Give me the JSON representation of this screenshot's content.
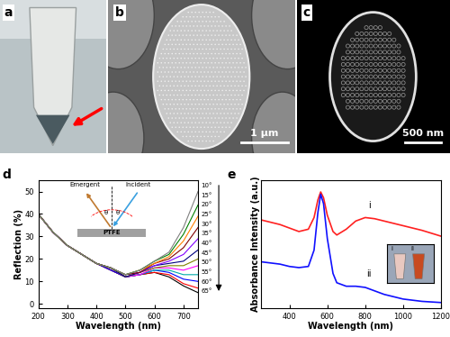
{
  "panels": [
    {
      "label": "a"
    },
    {
      "label": "b",
      "scale_bar": "1 μm"
    },
    {
      "label": "c",
      "scale_bar": "500 nm"
    }
  ],
  "chart_data": [
    {
      "type": "line",
      "label": "d",
      "x_label": "Wavelength (nm)",
      "y_label": "Reflection (%)",
      "xlim": [
        200,
        750
      ],
      "xticks": [
        200,
        300,
        400,
        500,
        600,
        700
      ],
      "ylim": [
        -2,
        55
      ],
      "yticks": [
        0,
        10,
        20,
        30,
        40,
        50
      ],
      "inset": {
        "emergent": "Emergent",
        "incident": "Incident",
        "angle": "θ",
        "substrate": "PTFE"
      },
      "x": [
        200,
        250,
        300,
        350,
        400,
        450,
        500,
        550,
        600,
        650,
        700,
        750
      ],
      "series": [
        {
          "name": "10°",
          "color": "#000000",
          "values": [
            40,
            32,
            26,
            22,
            18,
            15,
            12,
            13,
            14,
            12,
            8,
            5
          ]
        },
        {
          "name": "15°",
          "color": "#ff0000",
          "values": [
            40,
            32,
            26,
            22,
            18,
            15,
            12,
            13,
            14,
            13,
            9,
            7
          ]
        },
        {
          "name": "20°",
          "color": "#0000ff",
          "values": [
            40,
            32,
            26,
            22,
            18,
            15,
            12,
            13,
            15,
            14,
            11,
            10
          ]
        },
        {
          "name": "25°",
          "color": "#00aaaa",
          "values": [
            40,
            32,
            26,
            22,
            18,
            16,
            12,
            13,
            15,
            15,
            13,
            13
          ]
        },
        {
          "name": "30°",
          "color": "#ff00ff",
          "values": [
            40,
            32,
            26,
            22,
            18,
            16,
            12,
            13,
            16,
            16,
            15,
            17
          ]
        },
        {
          "name": "35°",
          "color": "#808000",
          "values": [
            40,
            32,
            26,
            22,
            18,
            16,
            12,
            14,
            16,
            17,
            17,
            20
          ]
        },
        {
          "name": "40°",
          "color": "#000080",
          "values": [
            40,
            32,
            26,
            22,
            18,
            16,
            12,
            14,
            17,
            18,
            19,
            24
          ]
        },
        {
          "name": "45°",
          "color": "#8000ff",
          "values": [
            40,
            32,
            26,
            22,
            18,
            16,
            13,
            14,
            17,
            19,
            22,
            29
          ]
        },
        {
          "name": "50°",
          "color": "#800000",
          "values": [
            40,
            32,
            26,
            22,
            18,
            16,
            13,
            14,
            18,
            20,
            25,
            34
          ]
        },
        {
          "name": "55°",
          "color": "#ff8000",
          "values": [
            40,
            32,
            26,
            22,
            18,
            16,
            13,
            15,
            18,
            21,
            28,
            39
          ]
        },
        {
          "name": "60°",
          "color": "#008000",
          "values": [
            40,
            32,
            26,
            22,
            18,
            16,
            13,
            15,
            19,
            22,
            31,
            44
          ]
        },
        {
          "name": "65°",
          "color": "#808080",
          "values": [
            40,
            32,
            26,
            22,
            18,
            16,
            13,
            15,
            19,
            23,
            34,
            50
          ]
        }
      ]
    },
    {
      "type": "line",
      "label": "e",
      "x_label": "Wavelength (nm)",
      "y_label": "Absorbance Intensity (a.u.)",
      "xlim": [
        250,
        1200
      ],
      "xticks": [
        400,
        600,
        800,
        1000,
        1200
      ],
      "ylim": [
        0,
        1.1
      ],
      "yticks": [],
      "tick_labels": "x",
      "inset_labels": [
        "i",
        "ii"
      ],
      "x": [
        250,
        300,
        350,
        400,
        450,
        500,
        530,
        550,
        565,
        580,
        600,
        630,
        650,
        700,
        750,
        800,
        850,
        900,
        1000,
        1100,
        1200
      ],
      "series": [
        {
          "name": "i",
          "color": "#ff2020",
          "values": [
            0.76,
            0.74,
            0.72,
            0.69,
            0.66,
            0.68,
            0.78,
            0.93,
            1.0,
            0.95,
            0.8,
            0.66,
            0.63,
            0.68,
            0.75,
            0.78,
            0.77,
            0.75,
            0.71,
            0.67,
            0.62
          ]
        },
        {
          "name": "ii",
          "color": "#1010ff",
          "values": [
            0.4,
            0.39,
            0.38,
            0.36,
            0.35,
            0.36,
            0.5,
            0.82,
            0.98,
            0.9,
            0.6,
            0.3,
            0.22,
            0.19,
            0.19,
            0.18,
            0.15,
            0.12,
            0.08,
            0.06,
            0.05
          ]
        }
      ]
    }
  ]
}
